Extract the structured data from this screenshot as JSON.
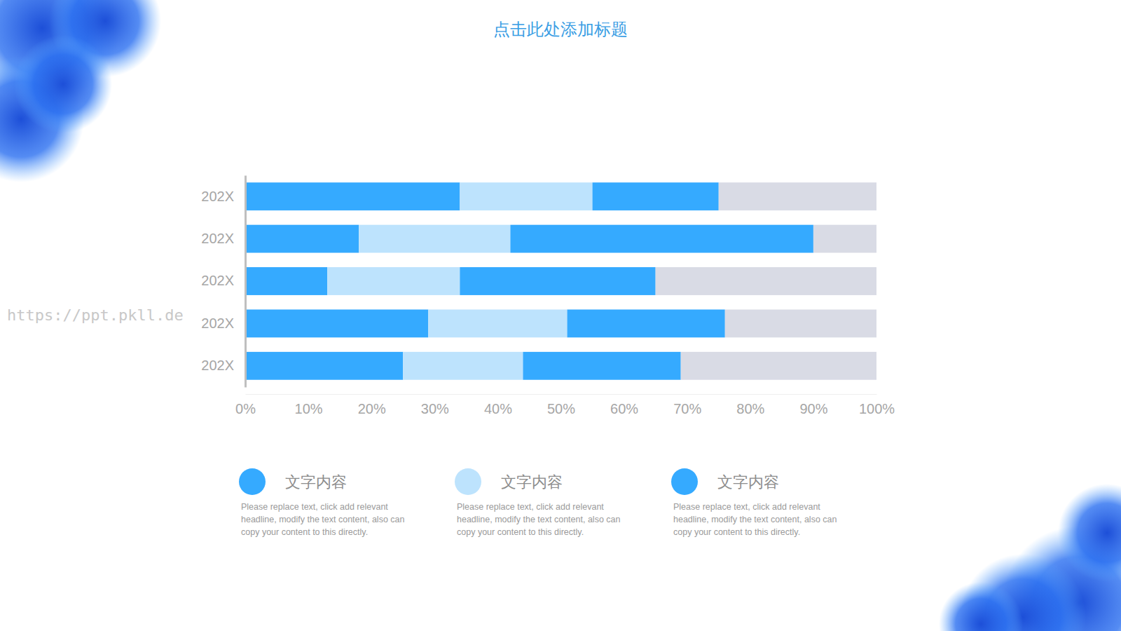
{
  "chart_data": {
    "type": "bar",
    "title": "点击此处添加标题",
    "watermark": "https://ppt.pkll.de",
    "orientation": "horizontal",
    "stacked": true,
    "legend": "bottom",
    "categories": [
      "202X",
      "202X",
      "202X",
      "202X",
      "202X"
    ],
    "series": [
      {
        "name": "文字内容",
        "description": "Please replace text, click add relevant headline, modify the text content, also can copy your content to this directly.",
        "color": "#35aaff",
        "values": [
          34,
          18,
          13,
          29,
          25
        ]
      },
      {
        "name": "文字内容",
        "description": "Please replace text, click add relevant headline, modify the text content, also can copy your content to this directly.",
        "color": "#bde3fd",
        "values": [
          21,
          24,
          21,
          22,
          19
        ]
      },
      {
        "name": "文字内容",
        "description": "Please replace text, click add relevant headline, modify the text content, also can copy your content to this directly.",
        "color": "#35aaff",
        "values": [
          20,
          48,
          31,
          25,
          25
        ]
      },
      {
        "color": "#d9dbe5",
        "values": [
          25,
          10,
          35,
          24,
          31
        ]
      }
    ],
    "xlim": [
      0,
      100
    ],
    "xticks": [
      {
        "value": 0,
        "label": "0%"
      },
      {
        "value": 10,
        "label": "10%"
      },
      {
        "value": 20,
        "label": "20%"
      },
      {
        "value": 30,
        "label": "30%"
      },
      {
        "value": 40,
        "label": "40%"
      },
      {
        "value": 50,
        "label": "50%"
      },
      {
        "value": 60,
        "label": "60%"
      },
      {
        "value": 70,
        "label": "70%"
      },
      {
        "value": 80,
        "label": "80%"
      },
      {
        "value": 90,
        "label": "90%"
      },
      {
        "value": 100,
        "label": "100%"
      }
    ],
    "grid": false
  }
}
